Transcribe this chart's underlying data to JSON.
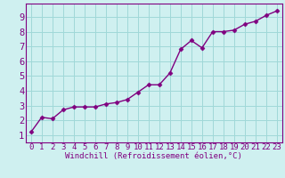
{
  "x": [
    0,
    1,
    2,
    3,
    4,
    5,
    6,
    7,
    8,
    9,
    10,
    11,
    12,
    13,
    14,
    15,
    16,
    17,
    18,
    19,
    20,
    21,
    22,
    23
  ],
  "y": [
    1.2,
    2.2,
    2.1,
    2.7,
    2.9,
    2.9,
    2.9,
    3.1,
    3.2,
    3.4,
    3.9,
    4.4,
    4.4,
    5.2,
    6.8,
    7.4,
    6.9,
    8.0,
    8.0,
    8.1,
    8.5,
    8.7,
    9.1,
    9.4
  ],
  "line_color": "#800080",
  "marker": "D",
  "markersize": 2.5,
  "linewidth": 1.0,
  "bg_color": "#cff0f0",
  "grid_color": "#a0d8d8",
  "xlabel": "Windchill (Refroidissement éolien,°C)",
  "xlim": [
    -0.5,
    23.5
  ],
  "ylim": [
    0.5,
    9.9
  ],
  "xticks": [
    0,
    1,
    2,
    3,
    4,
    5,
    6,
    7,
    8,
    9,
    10,
    11,
    12,
    13,
    14,
    15,
    16,
    17,
    18,
    19,
    20,
    21,
    22,
    23
  ],
  "yticks": [
    1,
    2,
    3,
    4,
    5,
    6,
    7,
    8,
    9
  ],
  "axis_color": "#800080",
  "tick_label_color": "#800080",
  "xlabel_color": "#800080",
  "xlabel_fontsize": 6.5,
  "tick_fontsize": 6.5,
  "ytick_fontsize": 7.5
}
